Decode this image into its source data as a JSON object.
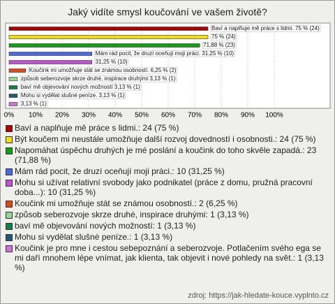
{
  "chart_data": {
    "type": "bar",
    "orientation": "horizontal",
    "title": "Jaký vidíte smysl koučování ve vašem životě?",
    "categories": [
      "Baví a naplňuje mě práce s lidmi.: 24 (75 %)",
      "Být koučem mi neustále umožňuje další rozvoj dovedností i osobnosti.: 24 (75 %)",
      "Napomáhat úspěchu druhých je mé poslání a koučink do toho skvěle zapadá.: 23 (71,88 %)",
      "Mám rád pocit, že druzí oceňují moji práci.: 10 (31,25 %)",
      "Mohu si užívat relativní svobody jako podnikatel (práce z domu, pružná pracovní doba...): 10 (31,25 %)",
      "Koučink mi umožňuje stát se známou osobností.: 2 (6,25 %)",
      "způsob seberozvoje skrze druhé, inspirace druhými: 1 (3,13 %)",
      "baví mě objevování nových možností: 1 (3,13 %)",
      "Mohu si vydělat slušné peníze.: 1 (3,13 %)",
      "Koučink je pro mne i cestou sebepoznání a seberozvoje. Potlačením svého ega se mi daří mnohem lépe vnímat, jak klienta, tak objevit i nové pohledy na svět.: 1 (3,13 %)"
    ],
    "values": [
      75,
      75,
      71.88,
      31.25,
      31.25,
      6.25,
      3.13,
      3.13,
      3.13,
      3.13
    ],
    "value_labels": [
      "Baví a naplňuje mě práce s lidmi. 75 % (24)",
      "75 % (24)",
      "71,88 % (23)",
      "Mám rád pocit, že druzí oceňují moji práci. 31,25 % (10)",
      "31,25 % (10)",
      "Koučink mi umožňuje stát se známou osobností. 6,25 % (2)",
      "způsob seberozvoje skrze druhé, inspirace druhými 3,13 % (1)",
      "baví mě objevování nových možností 3,13 % (1)",
      "Mohu si vydělat slušné peníze. 3,13 % (1)",
      "3,13 % (1)"
    ],
    "colors": [
      "#b00000",
      "#f0e010",
      "#10a010",
      "#4868e8",
      "#c050d8",
      "#e04818",
      "#90d890",
      "#108048",
      "#205878",
      "#d070d8"
    ],
    "xlim": [
      0,
      100
    ],
    "xticks": [
      {
        "value": 0,
        "label": "0%"
      },
      {
        "value": 10,
        "label": "10%"
      },
      {
        "value": 20,
        "label": "20%"
      },
      {
        "value": 30,
        "label": "30%"
      },
      {
        "value": 40,
        "label": "40%"
      },
      {
        "value": 50,
        "label": "50%"
      },
      {
        "value": 60,
        "label": "60%"
      },
      {
        "value": 70,
        "label": "70%"
      },
      {
        "value": 80,
        "label": "80%"
      },
      {
        "value": 90,
        "label": "90%"
      },
      {
        "value": 100,
        "label": "100%"
      }
    ],
    "grid": true,
    "source": "zdroj: https://jak-hledate-kouce.vyplnto.cz"
  }
}
